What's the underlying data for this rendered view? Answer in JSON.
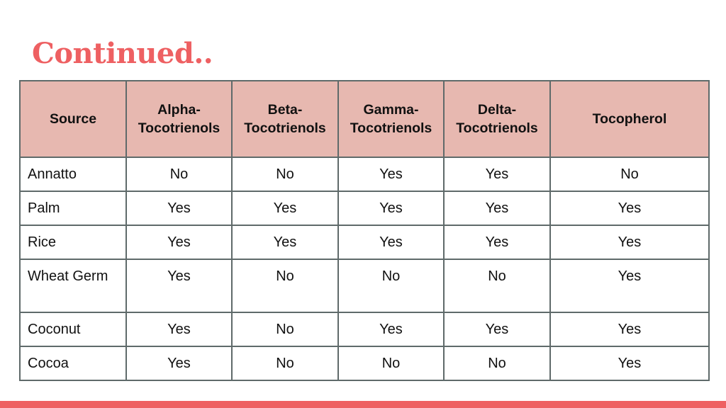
{
  "title": "Continued..",
  "table": {
    "headers": [
      "Source",
      "Alpha-\nTocotrienols",
      "Beta-\nTocotrienols",
      "Gamma-\nTocotrienols",
      "Delta-\nTocotrienols",
      "Tocopherol"
    ],
    "rows": [
      [
        "Annatto",
        "No",
        "No",
        "Yes",
        "Yes",
        "No"
      ],
      [
        "Palm",
        "Yes",
        "Yes",
        "Yes",
        "Yes",
        "Yes"
      ],
      [
        "Rice",
        "Yes",
        "Yes",
        "Yes",
        "Yes",
        "Yes"
      ],
      [
        "Wheat Germ",
        "Yes",
        "No",
        "No",
        "No",
        "Yes"
      ],
      [
        "Coconut",
        "Yes",
        "No",
        "Yes",
        "Yes",
        "Yes"
      ],
      [
        "Cocoa",
        "Yes",
        "No",
        "No",
        "No",
        "Yes"
      ]
    ]
  },
  "colors": {
    "accent": "#ee6062",
    "header_bg": "#e7b8b0",
    "border": "#5f6a6a"
  }
}
